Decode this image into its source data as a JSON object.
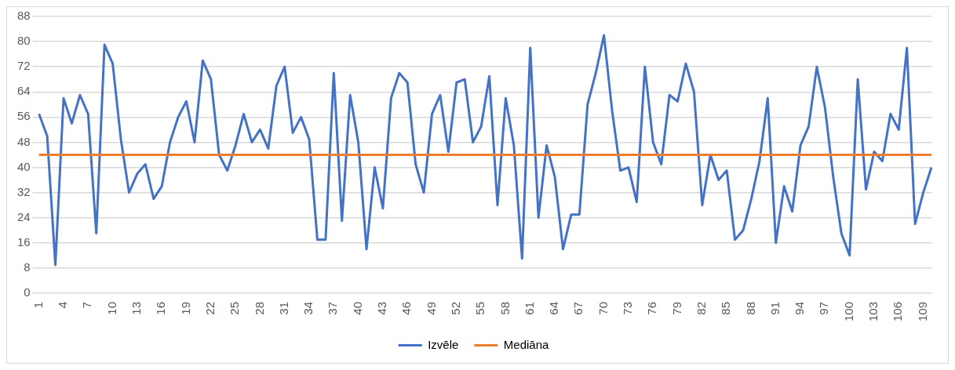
{
  "chart_data": {
    "type": "line",
    "categories": [
      "1",
      null,
      null,
      "4",
      null,
      null,
      "7",
      null,
      null,
      "10",
      null,
      null,
      "13",
      null,
      null,
      "16",
      null,
      null,
      "19",
      null,
      null,
      "22",
      null,
      null,
      "25",
      null,
      null,
      "28",
      null,
      null,
      "31",
      null,
      null,
      "34",
      null,
      null,
      "37",
      null,
      null,
      "40",
      null,
      null,
      "43",
      null,
      null,
      "46",
      null,
      null,
      "49",
      null,
      null,
      "52",
      null,
      null,
      "55",
      null,
      null,
      "58",
      null,
      null,
      "61",
      null,
      null,
      "64",
      null,
      null,
      "67",
      null,
      null,
      "70",
      null,
      null,
      "73",
      null,
      null,
      "76",
      null,
      null,
      "79",
      null,
      null,
      "82",
      null,
      null,
      "85",
      null,
      null,
      "88",
      null,
      null,
      "91",
      null,
      null,
      "94",
      null,
      null,
      "97",
      null,
      null,
      "100",
      null,
      null,
      "103",
      null,
      null,
      "106",
      null,
      null,
      "109",
      null
    ],
    "series": [
      {
        "name": "Izvēle",
        "color": "#4472c4",
        "values": [
          57,
          50,
          9,
          62,
          54,
          63,
          57,
          19,
          79,
          73,
          49,
          32,
          38,
          41,
          30,
          34,
          48,
          56,
          61,
          48,
          74,
          68,
          44,
          39,
          47,
          57,
          48,
          52,
          46,
          66,
          72,
          51,
          56,
          49,
          17,
          17,
          70,
          23,
          63,
          48,
          14,
          40,
          27,
          62,
          70,
          67,
          41,
          32,
          57,
          63,
          45,
          67,
          68,
          48,
          53,
          69,
          28,
          62,
          47,
          11,
          78,
          24,
          47,
          37,
          14,
          25,
          25,
          60,
          70,
          82,
          58,
          39,
          40,
          29,
          72,
          48,
          41,
          63,
          61,
          73,
          64,
          28,
          44,
          36,
          39,
          17,
          20,
          30,
          42,
          62,
          16,
          34,
          26,
          47,
          53,
          72,
          59,
          37,
          19,
          12,
          68,
          33,
          45,
          42,
          57,
          52,
          78,
          22,
          32,
          40
        ]
      }
    ],
    "ref_lines": [
      {
        "axis": "y",
        "value": 44,
        "label": "Mediāna",
        "color": "#ed7d31"
      }
    ],
    "ylim": [
      0,
      88
    ],
    "yticks": [
      0,
      8,
      16,
      24,
      32,
      40,
      48,
      56,
      64,
      72,
      80,
      88
    ],
    "grid": "y",
    "legend": "bottom",
    "marker": "none",
    "line_style": "solid"
  }
}
